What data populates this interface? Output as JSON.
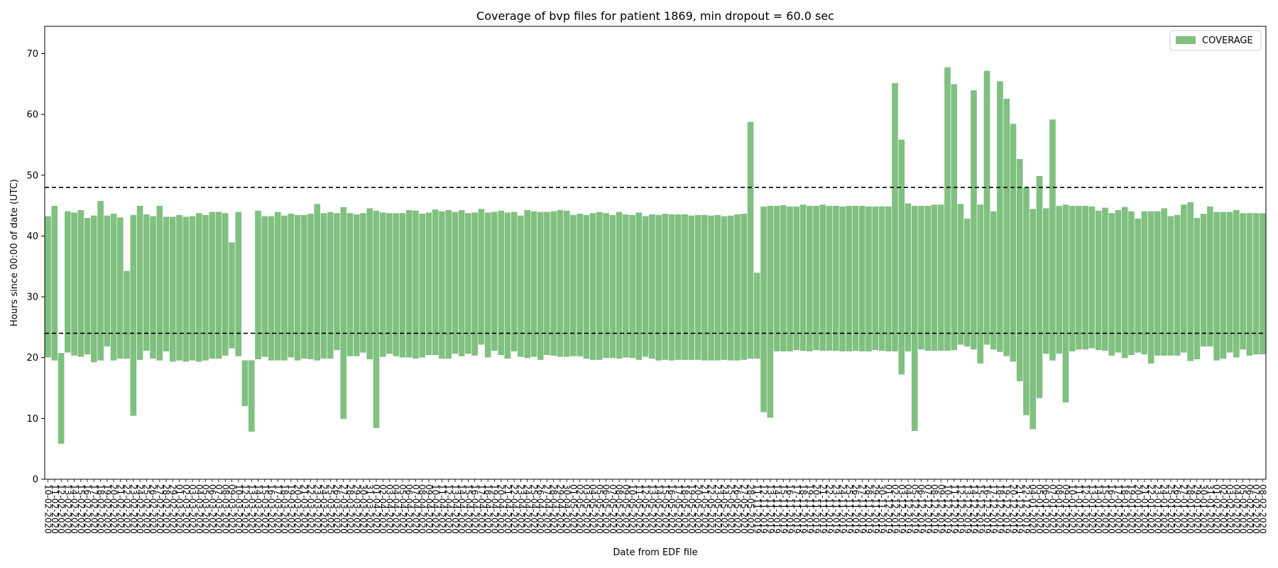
{
  "chart_data": {
    "type": "bar",
    "title": "Coverage of bvp files for patient 1869, min dropout = 60.0 sec",
    "xlabel": "Date from EDF file",
    "ylabel": "Hours since 00:00 of date (UTC)",
    "ylim": [
      0,
      74.5
    ],
    "yticks": [
      0,
      10,
      20,
      30,
      40,
      50,
      60,
      70
    ],
    "grid": false,
    "legend": {
      "position": "top-right",
      "entries": [
        "COVERAGE"
      ]
    },
    "bar_color": "#80c080",
    "reference_lines": [
      {
        "y": 24,
        "style": "dashed",
        "color": "#000000"
      },
      {
        "y": 48,
        "style": "dashed",
        "color": "#000000"
      }
    ],
    "series": [
      {
        "name": "COVERAGE",
        "bottoms": [
          20.0,
          19.5,
          5.8,
          20.8,
          20.3,
          20.1,
          20.5,
          19.2,
          19.5,
          21.8,
          19.5,
          19.8,
          19.8,
          10.4,
          19.6,
          21.1,
          19.8,
          19.5,
          21.0,
          19.3,
          19.5,
          19.3,
          19.5,
          19.3,
          19.5,
          19.8,
          19.8,
          20.3,
          21.5,
          20.2,
          12.0,
          7.8,
          19.7,
          20.1,
          19.5,
          19.5,
          19.5,
          20.0,
          19.5,
          19.8,
          19.7,
          19.5,
          19.8,
          19.8,
          21.2,
          9.9,
          20.2,
          20.2,
          20.8,
          19.7,
          8.4,
          20.1,
          20.6,
          20.2,
          20.0,
          20.0,
          19.8,
          20.0,
          20.4,
          20.4,
          19.8,
          19.8,
          20.6,
          20.2,
          20.6,
          20.3,
          22.1,
          20.0,
          21.1,
          20.4,
          19.8,
          21.0,
          20.1,
          19.9,
          20.1,
          19.6,
          20.4,
          20.3,
          20.1,
          20.1,
          20.2,
          20.2,
          19.8,
          19.6,
          19.6,
          19.9,
          19.9,
          19.8,
          20.0,
          19.9,
          19.6,
          20.1,
          19.8,
          19.5,
          19.6,
          19.5,
          19.6,
          19.6,
          19.6,
          19.6,
          19.5,
          19.5,
          19.5,
          19.6,
          19.5,
          19.5,
          19.6,
          19.8,
          19.8,
          11.0,
          10.1,
          21.0,
          21.0,
          21.0,
          21.2,
          21.1,
          21.0,
          21.2,
          21.1,
          21.1,
          21.1,
          21.0,
          21.0,
          21.1,
          21.0,
          21.0,
          21.2,
          21.1,
          21.0,
          21.0,
          17.2,
          21.0,
          7.9,
          21.3,
          21.1,
          21.1,
          21.1,
          21.1,
          21.2,
          22.1,
          21.8,
          21.3,
          19.0,
          22.1,
          21.3,
          20.9,
          20.2,
          19.3,
          16.1,
          10.5,
          8.2,
          13.3,
          20.6,
          19.5,
          20.6,
          12.6,
          21.0,
          21.3,
          21.3,
          21.5,
          21.2,
          21.1,
          20.3,
          20.8,
          19.9,
          20.4,
          20.8,
          20.5,
          19.0,
          20.3,
          20.3,
          20.3,
          20.3,
          20.8,
          19.4,
          19.7,
          21.8,
          21.8,
          19.5,
          19.8,
          20.8,
          20.0,
          21.3,
          20.3,
          20.5,
          20.5
        ],
        "tops": [
          43.3,
          45.0,
          20.8,
          44.1,
          43.9,
          44.3,
          43.0,
          43.4,
          45.8,
          43.4,
          43.7,
          43.1,
          34.3,
          43.5,
          45.0,
          43.6,
          43.3,
          45.0,
          43.2,
          43.2,
          43.5,
          43.2,
          43.3,
          43.8,
          43.5,
          44.0,
          44.0,
          43.8,
          39.0,
          44.0,
          19.6,
          19.6,
          44.2,
          43.3,
          43.3,
          44.0,
          43.4,
          43.7,
          43.5,
          43.5,
          43.7,
          45.3,
          43.8,
          44.0,
          43.8,
          44.8,
          43.8,
          43.6,
          43.8,
          44.6,
          44.2,
          43.9,
          43.8,
          43.8,
          43.8,
          44.3,
          44.2,
          43.7,
          43.9,
          44.4,
          44.1,
          44.3,
          44.0,
          44.3,
          43.8,
          43.9,
          44.5,
          43.9,
          44.0,
          44.2,
          43.9,
          44.0,
          43.4,
          44.3,
          44.1,
          44.0,
          44.0,
          44.1,
          44.3,
          44.2,
          43.5,
          43.7,
          43.5,
          43.8,
          44.0,
          43.8,
          43.5,
          44.0,
          43.6,
          43.5,
          43.9,
          43.3,
          43.6,
          43.5,
          43.7,
          43.6,
          43.6,
          43.6,
          43.4,
          43.5,
          43.5,
          43.4,
          43.5,
          43.3,
          43.4,
          43.6,
          43.7,
          58.8,
          34.0,
          44.9,
          45.0,
          45.0,
          45.1,
          44.9,
          44.9,
          45.2,
          45.0,
          45.0,
          45.2,
          45.0,
          45.0,
          44.9,
          45.0,
          45.0,
          45.0,
          44.9,
          44.9,
          44.9,
          44.9,
          65.2,
          55.9,
          45.4,
          45.0,
          45.0,
          45.0,
          45.2,
          45.2,
          67.8,
          65.0,
          45.3,
          42.9,
          64.0,
          45.2,
          67.2,
          44.1,
          65.5,
          62.6,
          58.5,
          52.7,
          48.0,
          44.5,
          49.9,
          44.6,
          59.2,
          45.0,
          45.2,
          45.0,
          45.0,
          45.0,
          44.9,
          44.2,
          44.7,
          43.8,
          44.3,
          44.8,
          44.1,
          42.9,
          44.1,
          44.1,
          44.1,
          44.6,
          43.3,
          43.5,
          45.2,
          45.6,
          43.0,
          43.7,
          44.9,
          44.0,
          44.0,
          44.0,
          44.3,
          43.8,
          43.8,
          43.8,
          43.8
        ]
      }
    ],
    "categories": [
      "10-02-2020",
      "11-02-2020",
      "12-02-2020",
      "13-02-2020",
      "14-02-2020",
      "15-02-2020",
      "16-02-2020",
      "17-02-2020",
      "18-02-2020",
      "19-02-2020",
      "20-02-2020",
      "21-02-2020",
      "22-02-2020",
      "23-02-2020",
      "24-02-2020",
      "25-02-2020",
      "26-02-2020",
      "27-02-2020",
      "28-02-2020",
      "29-02-2020",
      "01-03-2020",
      "02-03-2020",
      "03-03-2020",
      "04-03-2020",
      "05-03-2020",
      "06-03-2020",
      "07-03-2020",
      "08-03-2020",
      "09-03-2020",
      "10-03-2020",
      "12-03-2020",
      "13-03-2020",
      "14-03-2020",
      "15-03-2020",
      "16-03-2020",
      "17-03-2020",
      "18-03-2020",
      "19-03-2020",
      "20-03-2020",
      "21-03-2020",
      "22-03-2020",
      "23-03-2020",
      "24-03-2020",
      "25-03-2020",
      "26-03-2020",
      "27-03-2020",
      "28-03-2020",
      "29-03-2020",
      "30-03-2020",
      "31-03-2020",
      "01-04-2020",
      "02-04-2020",
      "03-04-2020",
      "04-04-2020",
      "05-04-2020",
      "06-04-2020",
      "07-04-2020",
      "08-04-2020",
      "09-04-2020",
      "10-04-2020",
      "11-04-2020",
      "12-04-2020",
      "13-04-2020",
      "14-04-2020",
      "15-04-2020",
      "16-04-2020",
      "17-04-2020",
      "18-04-2020",
      "19-04-2020",
      "20-04-2020",
      "21-04-2020",
      "22-04-2020",
      "23-04-2020",
      "24-04-2020",
      "25-04-2020",
      "26-04-2020",
      "27-04-2020",
      "28-04-2020",
      "29-04-2020",
      "30-04-2020",
      "01-05-2020",
      "02-05-2020",
      "03-05-2020",
      "04-05-2020",
      "05-05-2020",
      "06-05-2020",
      "07-05-2020",
      "08-05-2020",
      "09-05-2020",
      "10-05-2020",
      "11-05-2020",
      "12-05-2020",
      "13-05-2020",
      "14-05-2020",
      "15-05-2020",
      "16-05-2020",
      "17-05-2020",
      "18-05-2020",
      "19-05-2020",
      "20-05-2020",
      "21-05-2020",
      "22-05-2020",
      "23-05-2020",
      "24-05-2020",
      "25-05-2020",
      "26-05-2020",
      "27-05-2020",
      "28-05-2020",
      "11-11-2019",
      "12-11-2019",
      "13-11-2019",
      "14-11-2019",
      "15-11-2019",
      "16-11-2019",
      "17-11-2019",
      "18-11-2019",
      "19-11-2019",
      "20-11-2019",
      "21-11-2019",
      "22-11-2019",
      "23-11-2019",
      "24-11-2019",
      "25-11-2019",
      "26-11-2019",
      "27-11-2019",
      "28-11-2019",
      "29-11-2019",
      "30-11-2019",
      "01-12-2019",
      "02-12-2019",
      "03-12-2019",
      "04-12-2019",
      "05-12-2019",
      "06-12-2019",
      "07-12-2019",
      "08-12-2019",
      "09-12-2019",
      "10-12-2019",
      "11-12-2019",
      "12-12-2019",
      "13-12-2019",
      "14-12-2019",
      "15-12-2019",
      "16-12-2019",
      "17-12-2019",
      "18-12-2019",
      "19-12-2019",
      "20-12-2019",
      "21-12-2019",
      "22-12-2019",
      "04-01-2020",
      "05-01-2020",
      "06-01-2020",
      "07-01-2020",
      "08-01-2020",
      "09-01-2020",
      "10-01-2020",
      "11-01-2020",
      "12-01-2020",
      "13-01-2020",
      "14-01-2020",
      "15-01-2020",
      "16-01-2020",
      "17-01-2020",
      "18-01-2020",
      "19-01-2020",
      "20-01-2020",
      "21-01-2020",
      "22-01-2020",
      "23-01-2020",
      "24-01-2020",
      "25-01-2020",
      "26-01-2020",
      "27-01-2020",
      "28-01-2020",
      "29-01-2020",
      "30-01-2020",
      "31-01-2020",
      "01-02-2020",
      "02-02-2020",
      "03-02-2020",
      "04-02-2020",
      "05-02-2020",
      "06-02-2020",
      "07-02-2020",
      "08-02-2020"
    ]
  }
}
